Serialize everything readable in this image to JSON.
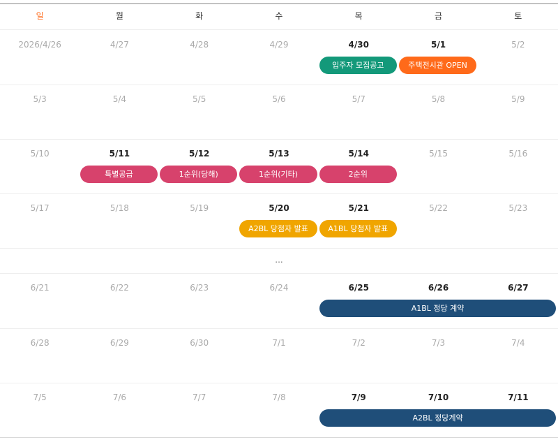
{
  "weekdays": [
    "일",
    "월",
    "화",
    "수",
    "목",
    "금",
    "토"
  ],
  "colors": {
    "sunday": "#ff6a1a",
    "green": "#13997a",
    "orange": "#ff6a1a",
    "pink": "#d7426c",
    "yellow": "#f0a500",
    "navy": "#1f4e79"
  },
  "weeks": [
    {
      "days": [
        {
          "label": "2026/4/26",
          "strong": false
        },
        {
          "label": "4/27",
          "strong": false
        },
        {
          "label": "4/28",
          "strong": false
        },
        {
          "label": "4/29",
          "strong": false
        },
        {
          "label": "4/30",
          "strong": true
        },
        {
          "label": "5/1",
          "strong": true
        },
        {
          "label": "5/2",
          "strong": false
        }
      ],
      "events": [
        {
          "label": "입주자 모집공고",
          "start": 4,
          "span": 1,
          "color": "green"
        },
        {
          "label": "주택전시관 OPEN",
          "start": 5,
          "span": 1,
          "color": "orange"
        }
      ]
    },
    {
      "days": [
        {
          "label": "5/3",
          "strong": false
        },
        {
          "label": "5/4",
          "strong": false
        },
        {
          "label": "5/5",
          "strong": false
        },
        {
          "label": "5/6",
          "strong": false
        },
        {
          "label": "5/7",
          "strong": false
        },
        {
          "label": "5/8",
          "strong": false
        },
        {
          "label": "5/9",
          "strong": false
        }
      ],
      "events": []
    },
    {
      "days": [
        {
          "label": "5/10",
          "strong": false
        },
        {
          "label": "5/11",
          "strong": true
        },
        {
          "label": "5/12",
          "strong": true
        },
        {
          "label": "5/13",
          "strong": true
        },
        {
          "label": "5/14",
          "strong": true
        },
        {
          "label": "5/15",
          "strong": false
        },
        {
          "label": "5/16",
          "strong": false
        }
      ],
      "events": [
        {
          "label": "특별공급",
          "start": 1,
          "span": 1,
          "color": "pink"
        },
        {
          "label": "1순위(당해)",
          "start": 2,
          "span": 1,
          "color": "pink"
        },
        {
          "label": "1순위(기타)",
          "start": 3,
          "span": 1,
          "color": "pink"
        },
        {
          "label": "2순위",
          "start": 4,
          "span": 1,
          "color": "pink"
        }
      ]
    },
    {
      "days": [
        {
          "label": "5/17",
          "strong": false
        },
        {
          "label": "5/18",
          "strong": false
        },
        {
          "label": "5/19",
          "strong": false
        },
        {
          "label": "5/20",
          "strong": true
        },
        {
          "label": "5/21",
          "strong": true
        },
        {
          "label": "5/22",
          "strong": false
        },
        {
          "label": "5/23",
          "strong": false
        }
      ],
      "events": [
        {
          "label": "A2BL 당첨자 발표",
          "start": 3,
          "span": 1,
          "color": "yellow"
        },
        {
          "label": "A1BL 당첨자 발표",
          "start": 4,
          "span": 1,
          "color": "yellow"
        }
      ]
    },
    {
      "ellipsis": "..."
    },
    {
      "days": [
        {
          "label": "6/21",
          "strong": false
        },
        {
          "label": "6/22",
          "strong": false
        },
        {
          "label": "6/23",
          "strong": false
        },
        {
          "label": "6/24",
          "strong": false
        },
        {
          "label": "6/25",
          "strong": true
        },
        {
          "label": "6/26",
          "strong": true
        },
        {
          "label": "6/27",
          "strong": true
        }
      ],
      "events": [
        {
          "label": "A1BL 정당 계약",
          "start": 4,
          "span": 3,
          "color": "navy"
        }
      ]
    },
    {
      "days": [
        {
          "label": "6/28",
          "strong": false
        },
        {
          "label": "6/29",
          "strong": false
        },
        {
          "label": "6/30",
          "strong": false
        },
        {
          "label": "7/1",
          "strong": false
        },
        {
          "label": "7/2",
          "strong": false
        },
        {
          "label": "7/3",
          "strong": false
        },
        {
          "label": "7/4",
          "strong": false
        }
      ],
      "events": []
    },
    {
      "days": [
        {
          "label": "7/5",
          "strong": false
        },
        {
          "label": "7/6",
          "strong": false
        },
        {
          "label": "7/7",
          "strong": false
        },
        {
          "label": "7/8",
          "strong": false
        },
        {
          "label": "7/9",
          "strong": true
        },
        {
          "label": "7/10",
          "strong": true
        },
        {
          "label": "7/11",
          "strong": true
        }
      ],
      "events": [
        {
          "label": "A2BL 정당계약",
          "start": 4,
          "span": 3,
          "color": "navy"
        }
      ]
    }
  ]
}
